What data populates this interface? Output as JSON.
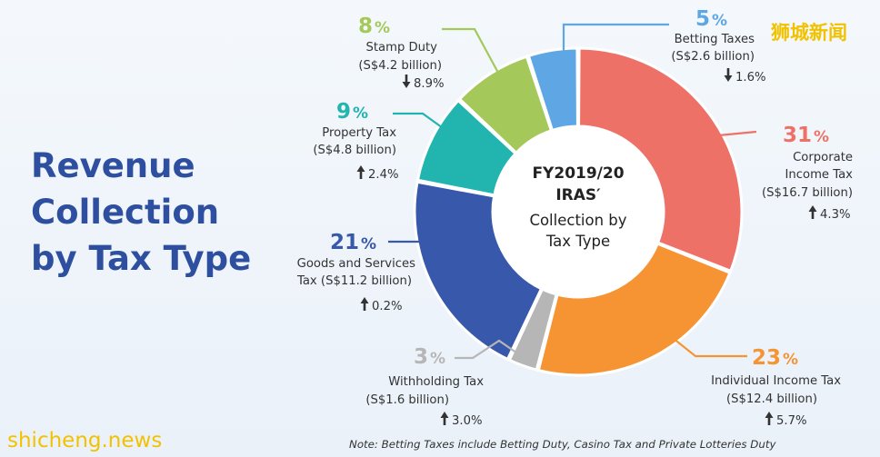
{
  "title_lines": [
    "Revenue",
    "Collection",
    "by Tax Type"
  ],
  "center_text": [
    "FY2019/20",
    "IRAS′",
    "Collection by",
    "Tax Type"
  ],
  "note": "Note: Betting Taxes include Betting Duty, Casino Tax and Private Lotteries Duty",
  "watermarks": {
    "top_right": "狮城新闻",
    "bottom_left": "shicheng.news"
  },
  "chart_data": {
    "type": "pie",
    "title": "",
    "slices": [
      {
        "key": "corporate",
        "percent": 31,
        "pct_sign": "%",
        "label_lines": [
          "Corporate",
          "Income Tax",
          "(S$16.7 billion)"
        ],
        "change": "4.3%",
        "direction": "up",
        "color": "#ee7168",
        "anchor": "end"
      },
      {
        "key": "individual",
        "percent": 23,
        "pct_sign": "%",
        "label_lines": [
          "Individual Income Tax",
          "(S$12.4 billion)"
        ],
        "change": "5.7%",
        "direction": "up",
        "color": "#f69433",
        "anchor": "end"
      },
      {
        "key": "withholding",
        "percent": 3,
        "pct_sign": "%",
        "label_lines": [
          "Withholding Tax",
          "(S$1.6 billion)"
        ],
        "change": "3.0%",
        "direction": "up",
        "color": "#b6b6b6",
        "anchor": "end"
      },
      {
        "key": "gst",
        "percent": 21,
        "pct_sign": "%",
        "label_lines": [
          "Goods and Services",
          "Tax (S$11.2 billion)"
        ],
        "change": "0.2%",
        "direction": "up",
        "color": "#3858ab",
        "anchor": "end"
      },
      {
        "key": "property",
        "percent": 9,
        "pct_sign": "%",
        "label_lines": [
          "Property Tax",
          "(S$4.8 billion)"
        ],
        "change": "2.4%",
        "direction": "up",
        "color": "#22b5b0",
        "anchor": "end"
      },
      {
        "key": "stamp",
        "percent": 8,
        "pct_sign": "%",
        "label_lines": [
          "Stamp Duty",
          "(S$4.2 billion)"
        ],
        "change": "8.9%",
        "direction": "down",
        "color": "#a4c95a",
        "anchor": "end"
      },
      {
        "key": "betting",
        "percent": 5,
        "pct_sign": "%",
        "label_lines": [
          "Betting Taxes",
          "(S$2.6 billion)"
        ],
        "change": "1.6%",
        "direction": "down",
        "color": "#5ea7e4",
        "anchor": "end"
      }
    ]
  }
}
